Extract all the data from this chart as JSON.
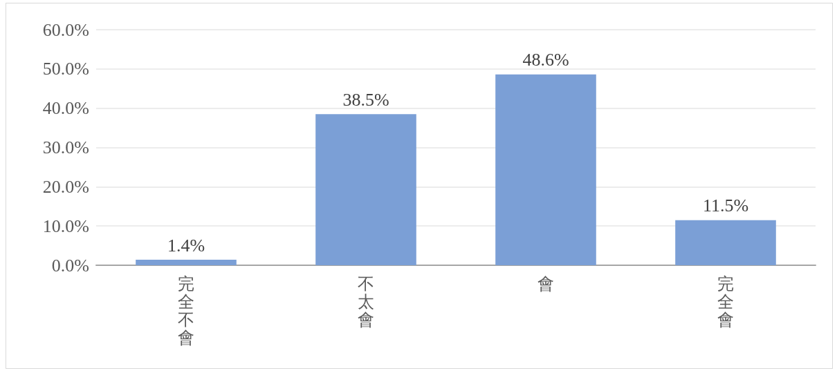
{
  "chart_data": {
    "type": "bar",
    "categories": [
      "完全不會",
      "不太會",
      "會",
      "完全會"
    ],
    "values": [
      1.4,
      38.5,
      48.6,
      11.5
    ],
    "color": "#7b9fd6",
    "value_labels": [
      "1.4%",
      "38.5%",
      "48.6%",
      "11.5%"
    ],
    "ylim": [
      0,
      60
    ],
    "yticks": [
      {
        "value": 0,
        "label": "0.0%"
      },
      {
        "value": 10,
        "label": "10.0%"
      },
      {
        "value": 20,
        "label": "20.0%"
      },
      {
        "value": 30,
        "label": "30.0%"
      },
      {
        "value": 40,
        "label": "40.0%"
      },
      {
        "value": 50,
        "label": "50.0%"
      },
      {
        "value": 60,
        "label": "60.0%"
      }
    ],
    "grid": "y"
  }
}
